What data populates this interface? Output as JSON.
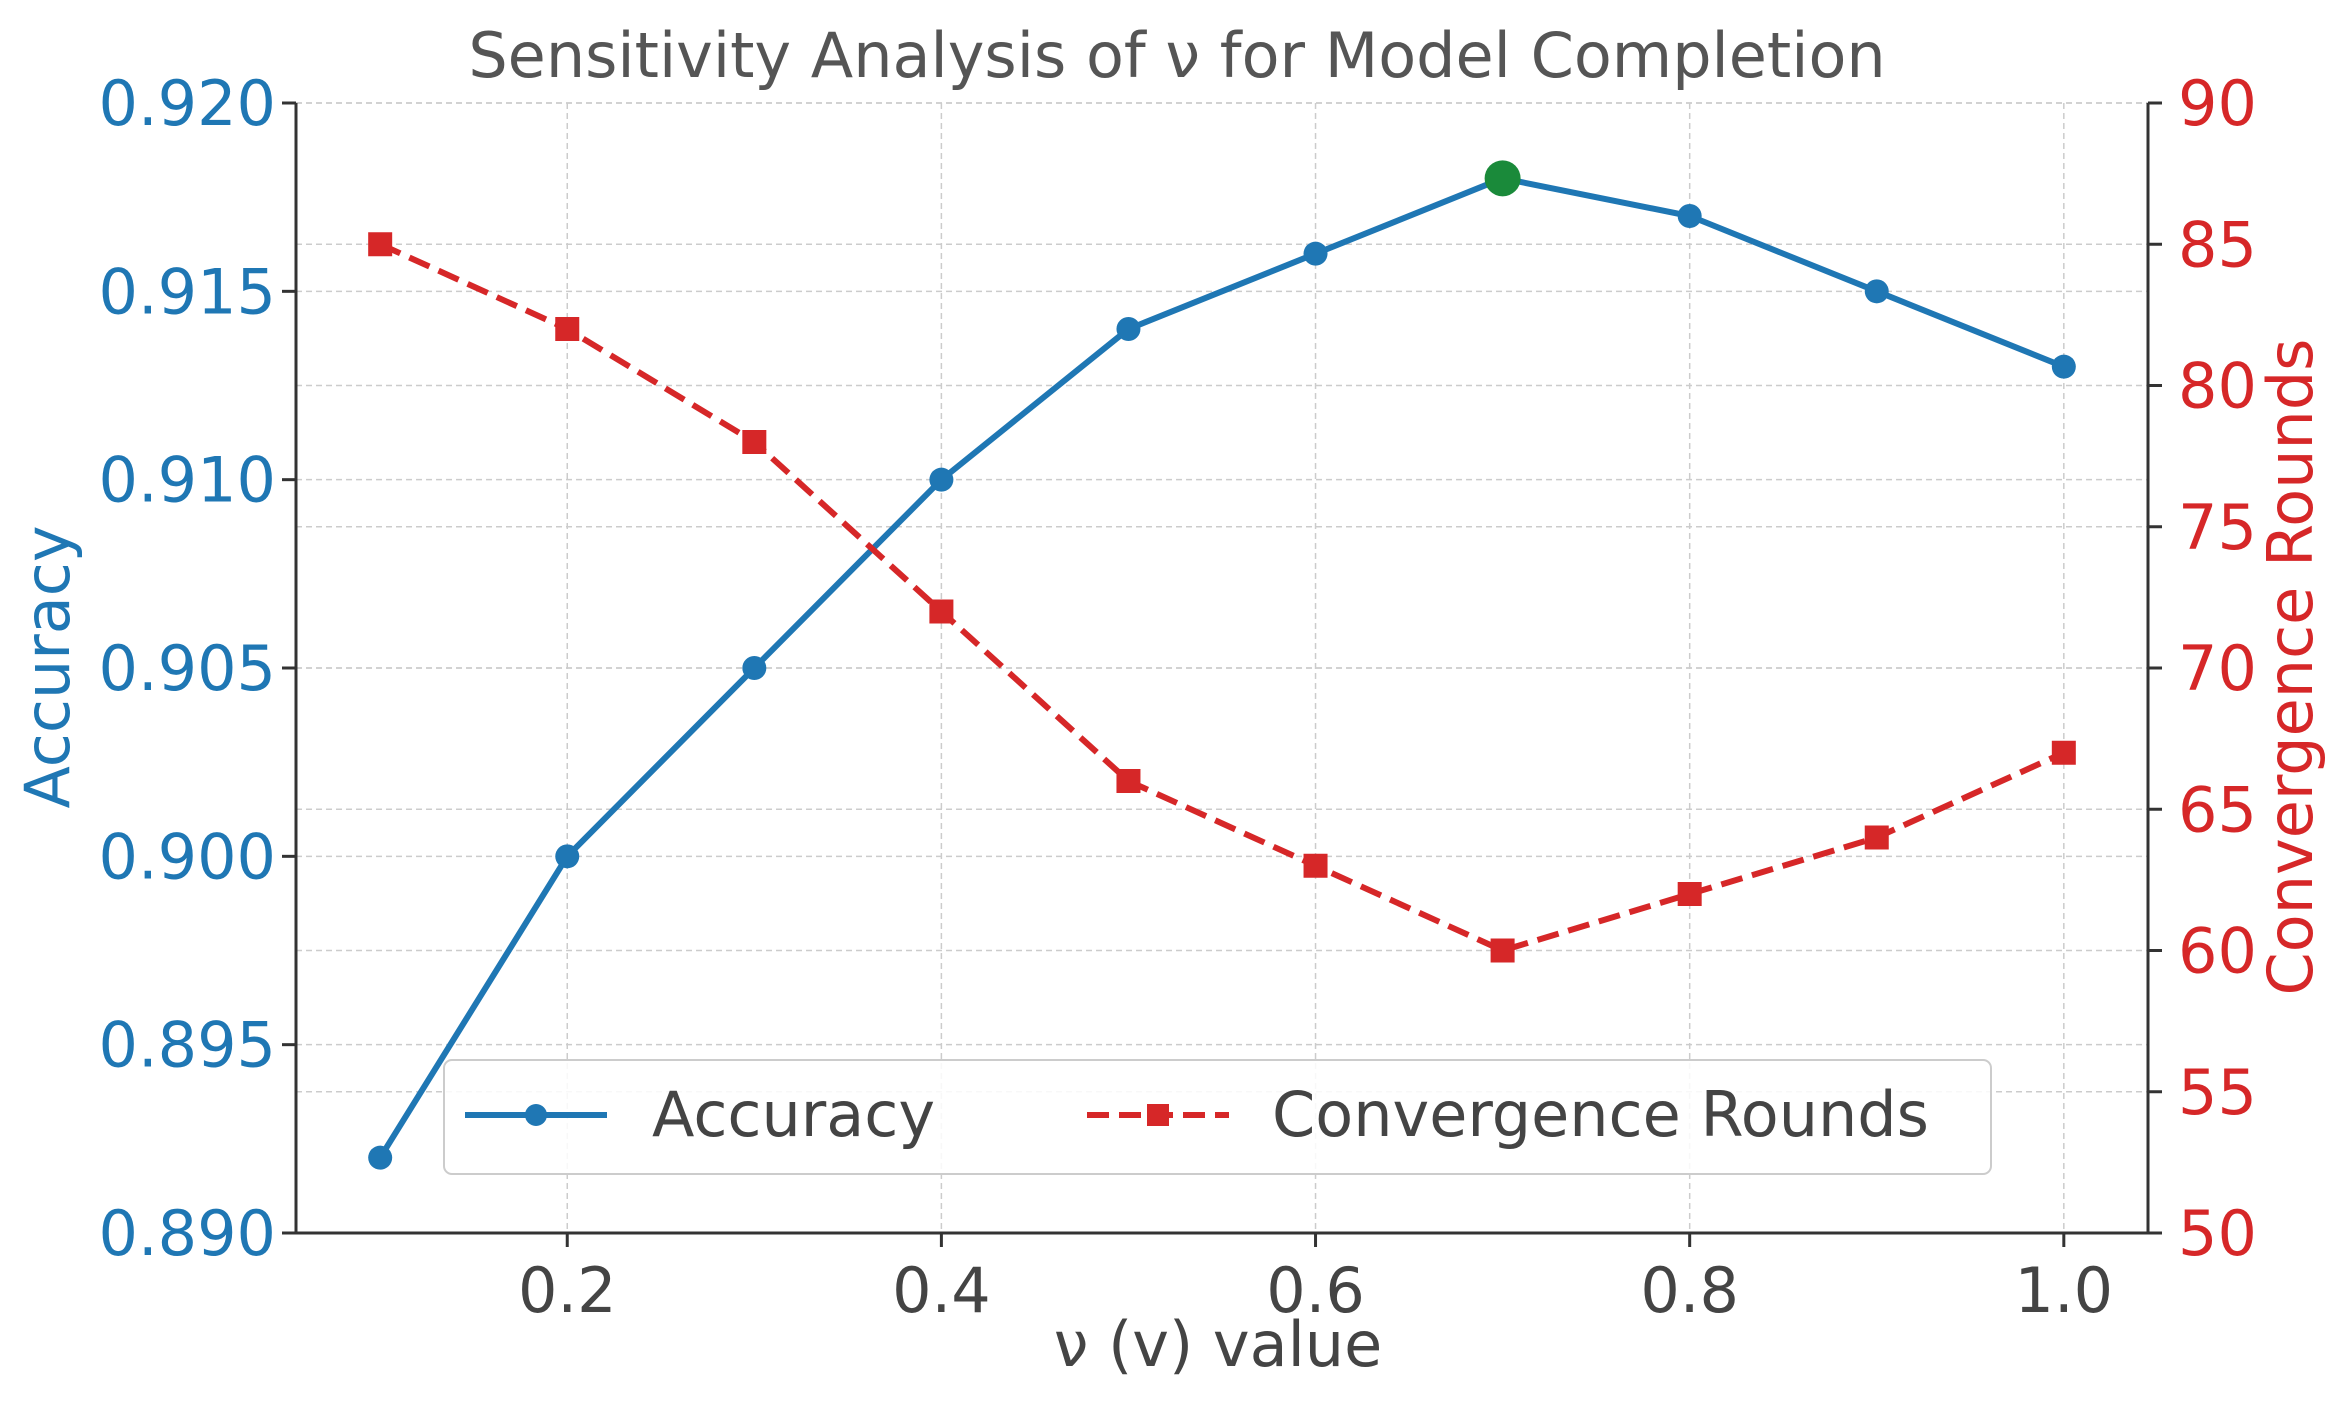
{
  "chart_data": {
    "type": "line",
    "title": "Sensitivity Analysis of ν for Model Completion",
    "xlabel": "ν (v) value",
    "ylabel_left": "Accuracy",
    "ylabel_right": "Convergence Rounds",
    "x": [
      0.1,
      0.2,
      0.3,
      0.4,
      0.5,
      0.6,
      0.7,
      0.8,
      0.9,
      1.0
    ],
    "xlim": [
      0.055,
      1.045
    ],
    "xticks": [
      0.2,
      0.4,
      0.6,
      0.8,
      1.0
    ],
    "xtick_labels": [
      "0.2",
      "0.4",
      "0.6",
      "0.8",
      "1.0"
    ],
    "ylim_left": [
      0.89,
      0.92
    ],
    "yticks_left": [
      0.89,
      0.895,
      0.9,
      0.905,
      0.91,
      0.915,
      0.92
    ],
    "ytick_labels_left": [
      "0.890",
      "0.895",
      "0.900",
      "0.905",
      "0.910",
      "0.915",
      "0.920"
    ],
    "ylim_right": [
      50,
      90
    ],
    "yticks_right": [
      50,
      55,
      60,
      65,
      70,
      75,
      80,
      85,
      90
    ],
    "ytick_labels_right": [
      "50",
      "55",
      "60",
      "65",
      "70",
      "75",
      "80",
      "85",
      "90"
    ],
    "series": [
      {
        "name": "Accuracy",
        "axis": "left",
        "color": "#1f77b4",
        "line_style": "solid",
        "marker": "circle",
        "values": [
          0.892,
          0.9,
          0.905,
          0.91,
          0.914,
          0.916,
          0.918,
          0.917,
          0.915,
          0.913
        ]
      },
      {
        "name": "Convergence Rounds",
        "axis": "right",
        "color": "#d62728",
        "line_style": "dashed",
        "marker": "square",
        "values": [
          85,
          82,
          78,
          72,
          66,
          63,
          60,
          62,
          64,
          67
        ]
      }
    ],
    "highlight": {
      "x": 0.7,
      "value": 0.918,
      "color": "#1a8a3a"
    },
    "legend": {
      "placement": "lower-center",
      "entries": [
        "Accuracy",
        "Convergence Rounds"
      ]
    },
    "grid": true,
    "colors": {
      "left_axis": "#1f77b4",
      "right_axis": "#d62728",
      "text": "#444444",
      "grid": "#cccccc"
    }
  }
}
